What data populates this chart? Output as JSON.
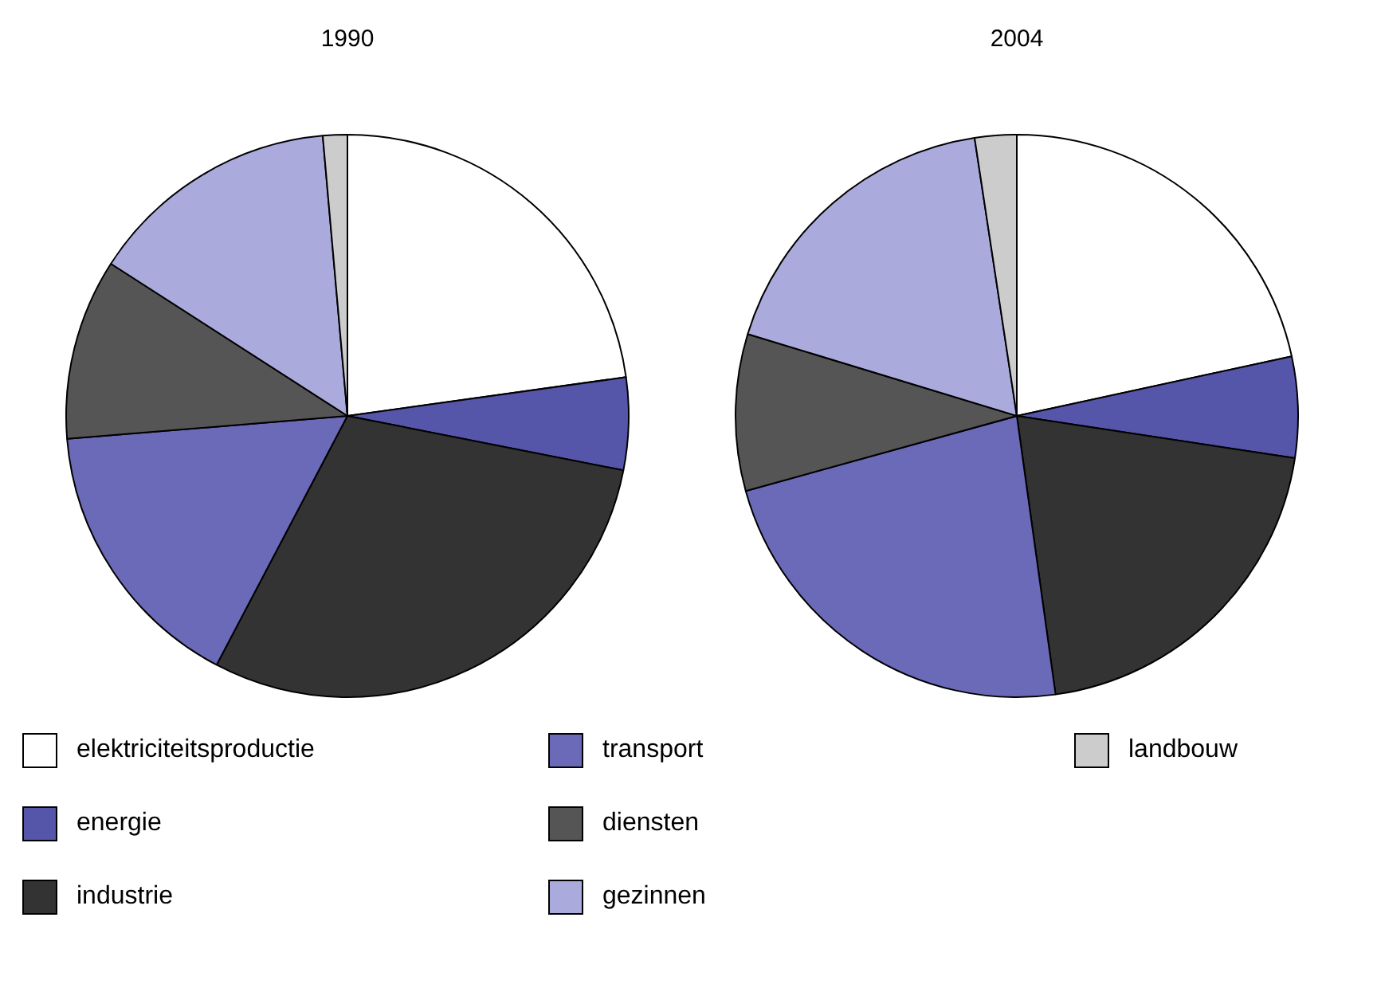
{
  "chart_data": [
    {
      "type": "pie",
      "title": "1990",
      "categories": [
        "elektriciteitsproductie",
        "energie",
        "industrie",
        "transport",
        "diensten",
        "gezinnen",
        "landbouw"
      ],
      "values": [
        22.8,
        5.3,
        29.6,
        16,
        10.4,
        14.5,
        1.4
      ],
      "colors": [
        "#ffffff",
        "#5555aa",
        "#333333",
        "#6a6ab8",
        "#555555",
        "#aaaadd",
        "#cccccc"
      ],
      "legend": "bottom"
    },
    {
      "type": "pie",
      "title": "2004",
      "categories": [
        null,
        null,
        null,
        null,
        null,
        null,
        null
      ],
      "values": [
        21.6,
        5.8,
        20.4,
        22.9,
        9,
        17.9,
        2.4
      ],
      "colors": [
        "#ffffff",
        "#5555aa",
        "#333333",
        "#6a6ab8",
        "#555555",
        "#aaaadd",
        "#cccccc"
      ]
    }
  ]
}
